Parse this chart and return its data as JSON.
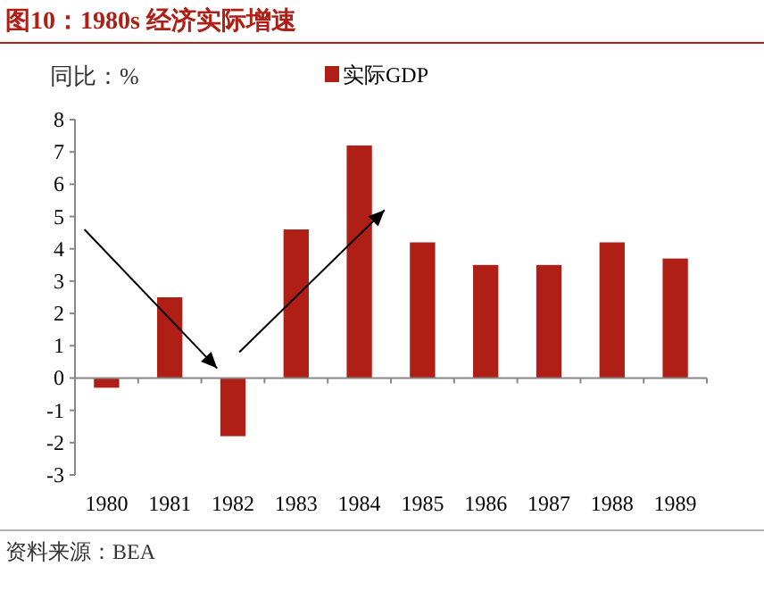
{
  "chart_data": {
    "type": "bar",
    "title": "图10：1980s 经济实际增速",
    "ylabel": "同比：%",
    "categories": [
      "1980",
      "1981",
      "1982",
      "1983",
      "1984",
      "1985",
      "1986",
      "1987",
      "1988",
      "1989"
    ],
    "series": [
      {
        "name": "实际GDP",
        "color": "#b01f16",
        "values": [
          -0.3,
          2.5,
          -1.8,
          4.6,
          7.2,
          4.2,
          3.5,
          3.5,
          4.2,
          3.7
        ]
      }
    ],
    "ylim": [
      -3,
      8
    ],
    "yticks": [
      -3,
      -2,
      -1,
      0,
      1,
      2,
      3,
      4,
      5,
      6,
      7,
      8
    ],
    "legend": "top",
    "annotations": [
      "资料来源：BEA"
    ]
  }
}
